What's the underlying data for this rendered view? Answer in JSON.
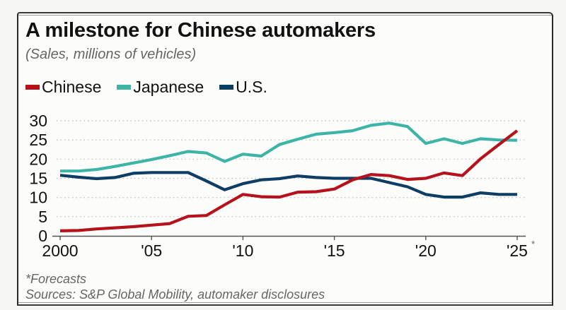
{
  "chart_data": {
    "type": "line",
    "title": "A milestone for Chinese automakers",
    "subtitle": "(Sales, millions of vehicles)",
    "xlabel": "",
    "ylabel": "",
    "x": [
      2000,
      2001,
      2002,
      2003,
      2004,
      2005,
      2006,
      2007,
      2008,
      2009,
      2010,
      2011,
      2012,
      2013,
      2014,
      2015,
      2016,
      2017,
      2018,
      2019,
      2020,
      2021,
      2022,
      2023,
      2024,
      2025
    ],
    "ylim": [
      0,
      30
    ],
    "xlim": [
      2000,
      2025
    ],
    "yticks": [
      0,
      5,
      10,
      15,
      20,
      25,
      30
    ],
    "ytick_labels": [
      "0",
      "5",
      "10",
      "15",
      "20",
      "25",
      "30"
    ],
    "xticks": [
      2000,
      2005,
      2010,
      2015,
      2020,
      2025
    ],
    "xtick_labels": [
      "2000",
      "'05",
      "'10",
      "'15",
      "'20",
      "'25"
    ],
    "xtick_suffix_last": "*",
    "grid": "horizontal-dotted",
    "legend_position": "top-left",
    "series": [
      {
        "name": "Chinese",
        "color": "#b5121b",
        "values": [
          1.3,
          1.4,
          1.8,
          2.1,
          2.4,
          2.8,
          3.2,
          5.1,
          5.3,
          8.1,
          10.8,
          10.2,
          10.1,
          11.4,
          11.5,
          12.2,
          14.6,
          16.0,
          15.7,
          14.7,
          15.0,
          16.4,
          15.7,
          20.1,
          23.8,
          27.4
        ]
      },
      {
        "name": "Japanese",
        "color": "#3db5a6",
        "values": [
          16.9,
          16.9,
          17.3,
          18.1,
          19.0,
          19.9,
          20.9,
          22.0,
          21.6,
          19.4,
          21.3,
          20.8,
          23.8,
          25.2,
          26.5,
          26.9,
          27.4,
          28.8,
          29.4,
          28.5,
          24.1,
          25.3,
          24.1,
          25.3,
          25.0,
          24.9
        ]
      },
      {
        "name": "U.S.",
        "color": "#0e3e64",
        "values": [
          15.8,
          15.3,
          14.9,
          15.2,
          16.3,
          16.5,
          16.5,
          16.5,
          14.3,
          12.0,
          13.6,
          14.6,
          14.9,
          15.6,
          15.2,
          15.0,
          15.0,
          15.0,
          13.9,
          12.8,
          10.8,
          10.1,
          10.1,
          11.2,
          10.8,
          10.8
        ]
      }
    ],
    "footnote": "*Forecasts",
    "source": "Sources: S&P Global Mobility, automaker disclosures"
  }
}
